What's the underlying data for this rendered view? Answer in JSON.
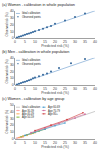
{
  "chart_data": [
    {
      "type": "scatter",
      "title": "(a) Women - calibration in whole population",
      "xlabel": "Predicted risk (%)",
      "ylabel": "Observed risk (%)",
      "xlim": [
        0,
        40
      ],
      "ylim": [
        0,
        40
      ],
      "xticks": [
        0,
        5,
        10,
        15,
        20,
        25,
        30,
        35,
        40
      ],
      "yticks": [
        0,
        10,
        20,
        30,
        40
      ],
      "grid": false,
      "legend": "upper left",
      "series": [
        {
          "name": "Ideal calibration",
          "type": "line",
          "color": "#6699cc",
          "x": [
            0,
            40
          ],
          "values": [
            0,
            40
          ]
        },
        {
          "name": "Observed points",
          "type": "scatter",
          "marker": "circle",
          "color": "#336699",
          "x": [
            1,
            2,
            3,
            4,
            5,
            6,
            7,
            8,
            9,
            10,
            12,
            14,
            16,
            18,
            20,
            25,
            30,
            35
          ],
          "values": [
            1,
            2,
            3,
            4,
            5,
            6,
            7,
            8,
            9,
            10,
            12,
            14,
            16,
            18,
            21,
            26,
            31,
            36
          ]
        }
      ]
    },
    {
      "type": "scatter",
      "title": "(b) Men - calibration in whole population",
      "xlabel": "Predicted risk (%)",
      "ylabel": "Observed risk (%)",
      "xlim": [
        0,
        40
      ],
      "ylim": [
        0,
        40
      ],
      "xticks": [
        0,
        5,
        10,
        15,
        20,
        25,
        30,
        35,
        40
      ],
      "yticks": [
        0,
        10,
        20,
        30,
        40
      ],
      "grid": false,
      "legend": "upper left",
      "series": [
        {
          "name": "Ideal calibration",
          "type": "line",
          "color": "#6699cc",
          "x": [
            0,
            40
          ],
          "values": [
            0,
            40
          ]
        },
        {
          "name": "Observed points",
          "type": "scatter",
          "marker": "circle",
          "color": "#336699",
          "x": [
            1,
            2,
            3,
            4,
            5,
            6,
            7,
            8,
            9,
            10,
            12,
            14,
            16,
            18,
            22,
            28,
            35
          ],
          "values": [
            1,
            2,
            3,
            4,
            5,
            6,
            7,
            8,
            10,
            11,
            13,
            15,
            17,
            20,
            25,
            32,
            38
          ]
        }
      ]
    },
    {
      "type": "line",
      "title": "(c) Women - calibration by age group",
      "xlabel": "Predicted risk (%)",
      "ylabel": "Observed risk (%)",
      "xlim": [
        0,
        40
      ],
      "ylim": [
        0,
        50
      ],
      "xticks": [
        0,
        5,
        10,
        15,
        20,
        25,
        30,
        35,
        40
      ],
      "yticks": [
        0,
        10,
        20,
        30,
        40,
        50
      ],
      "grid": false,
      "legend": "upper left",
      "series": [
        {
          "name": "Ideal calibration",
          "type": "line",
          "color": "#aaaaaa",
          "x": [
            0,
            40
          ],
          "values": [
            0,
            40
          ]
        },
        {
          "name": "Age 30-39",
          "type": "line",
          "marker": "circle",
          "color": "#ff9999",
          "x": [
            1,
            2,
            3,
            4
          ],
          "values": [
            1,
            1.5,
            2,
            2.5
          ]
        },
        {
          "name": "Age 40-49",
          "type": "line",
          "marker": "circle",
          "color": "#ffaa55",
          "x": [
            2,
            4,
            6,
            8,
            10
          ],
          "values": [
            2,
            4,
            5,
            7,
            9
          ]
        },
        {
          "name": "Age 50-59",
          "type": "line",
          "marker": "circle",
          "color": "#88bb44",
          "x": [
            3,
            6,
            9,
            12,
            15
          ],
          "values": [
            3,
            6,
            8,
            11,
            14
          ]
        },
        {
          "name": "Age 60-69",
          "type": "line",
          "marker": "circle",
          "color": "#4499cc",
          "x": [
            5,
            10,
            15,
            20,
            25
          ],
          "values": [
            5,
            10,
            14,
            19,
            23
          ]
        },
        {
          "name": "Age 70-79",
          "type": "line",
          "marker": "circle",
          "color": "#cc6699",
          "x": [
            8,
            15,
            22,
            30,
            35
          ],
          "values": [
            9,
            16,
            22,
            30,
            36
          ]
        },
        {
          "name": "Age 80+",
          "type": "line",
          "marker": "circle",
          "color": "#cc3333",
          "x": [
            10,
            18,
            26,
            34
          ],
          "values": [
            12,
            20,
            28,
            38
          ]
        }
      ]
    }
  ]
}
